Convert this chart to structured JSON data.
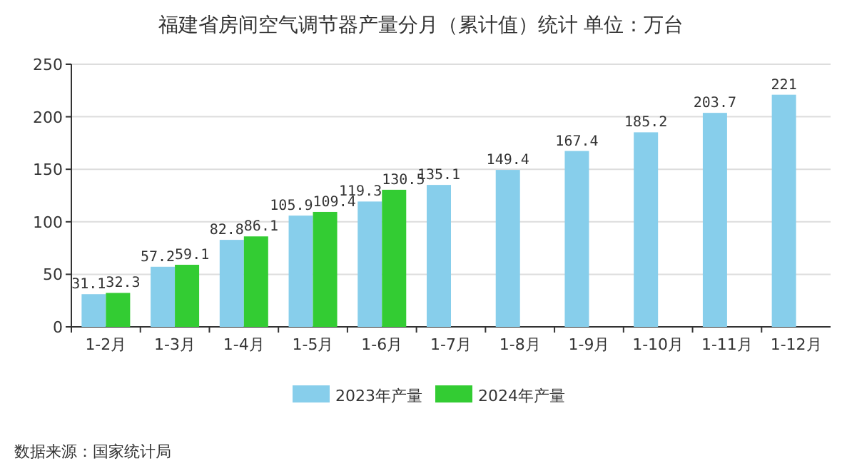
{
  "chart_data": {
    "type": "bar",
    "title": "福建省房间空气调节器产量分月（累计值）统计  单位：万台",
    "categories": [
      "1-2月",
      "1-3月",
      "1-4月",
      "1-5月",
      "1-6月",
      "1-7月",
      "1-8月",
      "1-9月",
      "1-10月",
      "1-11月",
      "1-12月"
    ],
    "series": [
      {
        "name": "2023年产量",
        "color": "#87ceeb",
        "values": [
          31.1,
          57.2,
          82.8,
          105.9,
          119.3,
          135.1,
          149.4,
          167.4,
          185.2,
          203.7,
          221
        ]
      },
      {
        "name": "2024年产量",
        "color": "#33cc33",
        "values": [
          32.3,
          59.1,
          86.1,
          109.4,
          130.5,
          null,
          null,
          null,
          null,
          null,
          null
        ]
      }
    ],
    "ylim": [
      0,
      250
    ],
    "yticks": [
      0,
      50,
      100,
      150,
      200,
      250
    ],
    "grid": "y",
    "legend": "bottom",
    "data_labels": true,
    "annotations": [
      "数据来源：国家统计局"
    ]
  }
}
